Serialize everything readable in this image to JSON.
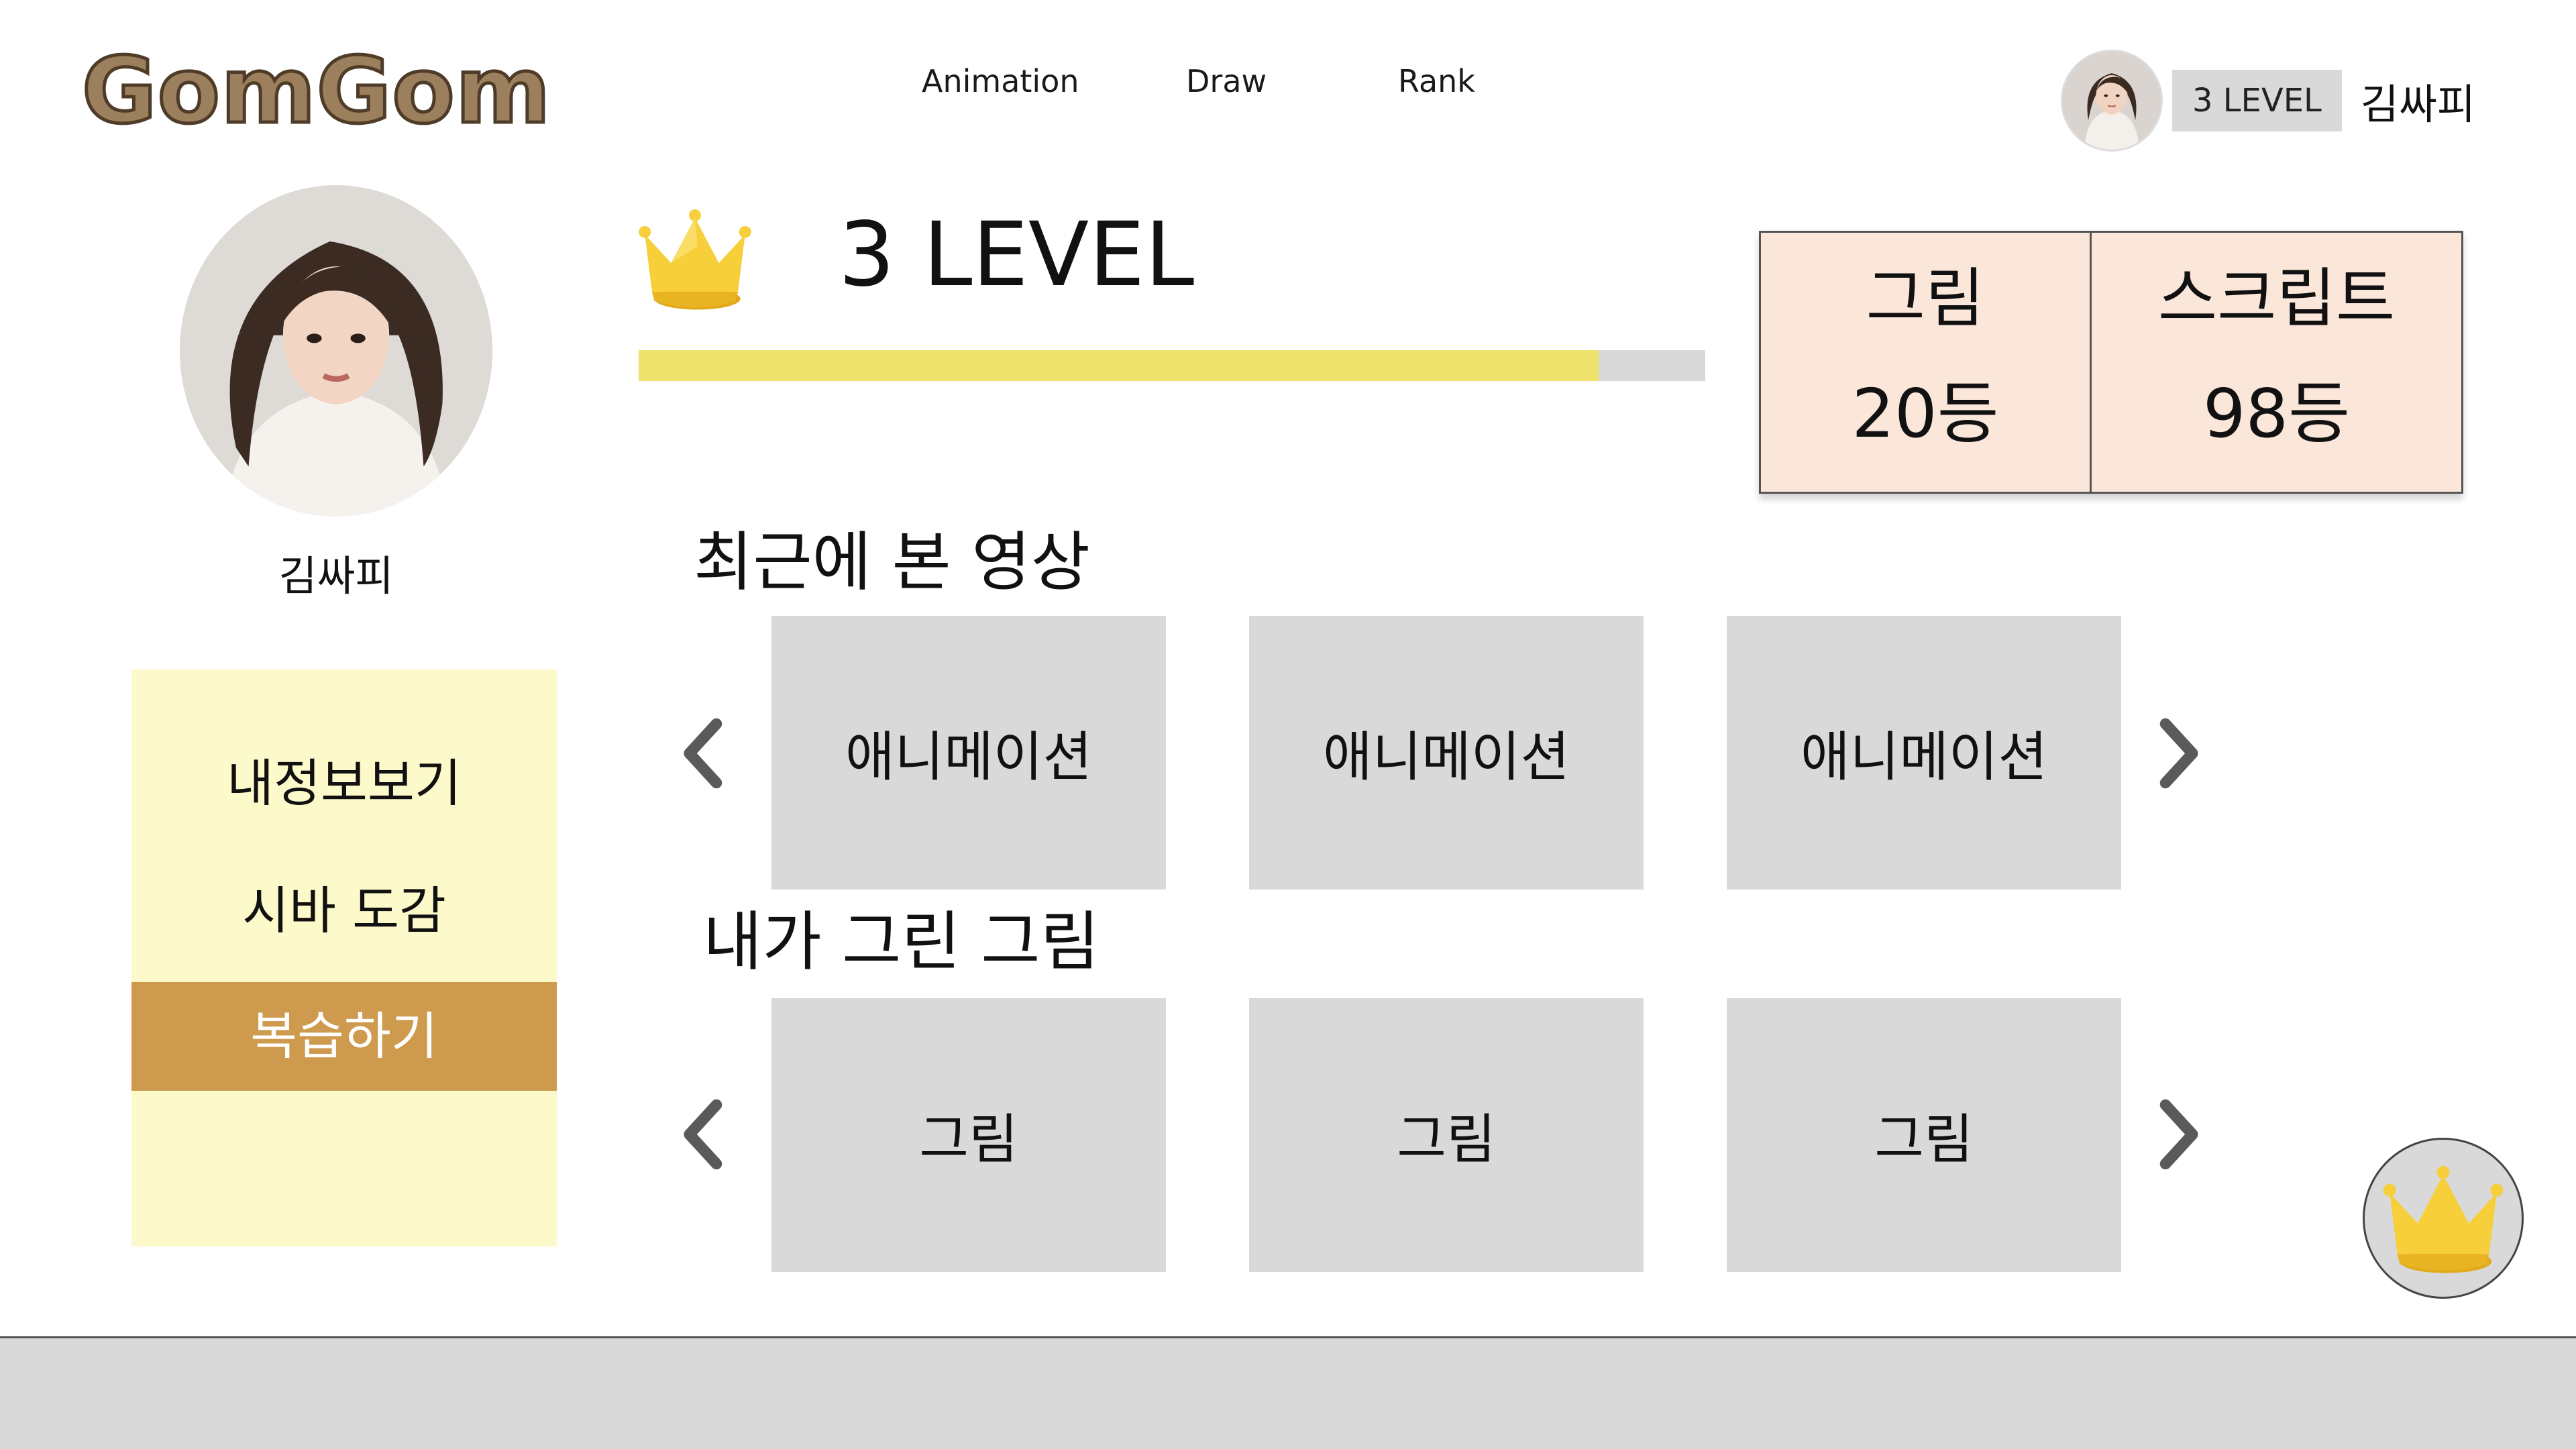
{
  "header": {
    "logo": "GomGom",
    "nav": [
      "Animation",
      "Draw",
      "Rank"
    ],
    "user": {
      "level_chip": "3 LEVEL",
      "name": "김싸피"
    }
  },
  "profile": {
    "name": "김싸피",
    "menu": [
      {
        "label": "내정보보기",
        "active": false
      },
      {
        "label": "시바 도감",
        "active": false
      },
      {
        "label": "복습하기",
        "active": true
      }
    ]
  },
  "level": {
    "title": "3 LEVEL",
    "progress": 0.9
  },
  "ranks": [
    {
      "label": "그림",
      "value": "20등"
    },
    {
      "label": "스크립트",
      "value": "98등"
    }
  ],
  "recent": {
    "title": "최근에 본 영상",
    "cards": [
      "애니메이션",
      "애니메이션",
      "애니메이션"
    ]
  },
  "drawings": {
    "title": "내가 그린 그림",
    "cards": [
      "그림",
      "그림",
      "그림"
    ]
  },
  "colors": {
    "logo": "#9c7f5c",
    "menu_bg": "#fcf9cb",
    "menu_active": "#cd9a4e",
    "progress_fill": "#f0e36b",
    "rank_bg": "#fbe6da",
    "card_bg": "#d9d9d9"
  },
  "icons": [
    "crown-icon",
    "chevron-left-icon",
    "chevron-right-icon"
  ]
}
